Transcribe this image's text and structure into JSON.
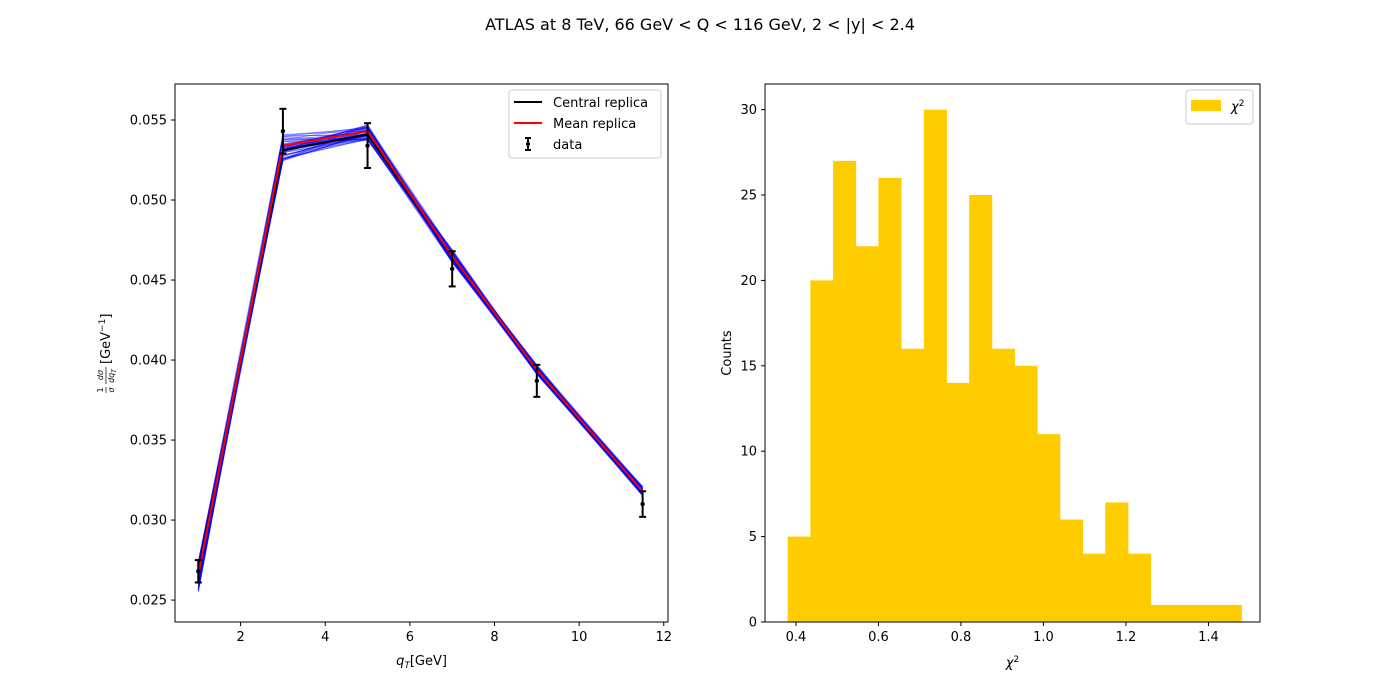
{
  "figure": {
    "suptitle": "ATLAS at 8 TeV, 66 GeV < Q < 116 GeV, 2 < |y| < 2.4"
  },
  "colors": {
    "replicas": "#0000ff",
    "central": "#000000",
    "mean": "#ff0000",
    "data": "#000000",
    "histogram": "#ffcc00"
  },
  "chart_data": [
    {
      "type": "line",
      "xlabel": "q_T[GeV]",
      "ylabel": "(1/σ) dσ/dq_T [GeV⁻¹]",
      "xlim": [
        0.45,
        12.1
      ],
      "ylim": [
        0.02363,
        0.05725
      ],
      "xticks": [
        2,
        4,
        6,
        8,
        10,
        12
      ],
      "yticks": [
        0.025,
        0.03,
        0.035,
        0.04,
        0.045,
        0.05,
        0.055
      ],
      "grid": false,
      "legend_position": "top-right",
      "x": [
        1,
        3,
        5,
        7,
        9,
        11.5
      ],
      "replica_band": {
        "name": "replicas",
        "count": 60,
        "lower": [
          0.0255,
          0.0524,
          0.0537,
          0.0461,
          0.0391,
          0.0315
        ],
        "upper": [
          0.0275,
          0.0541,
          0.0547,
          0.0469,
          0.0397,
          0.0321
        ]
      },
      "series": [
        {
          "name": "Central replica",
          "values": [
            0.0268,
            0.0531,
            0.0541,
            0.0465,
            0.0394,
            0.0318
          ]
        },
        {
          "name": "Mean replica",
          "values": [
            0.0266,
            0.0534,
            0.0543,
            0.0465,
            0.0394,
            0.0318
          ]
        }
      ],
      "data": {
        "name": "data",
        "values": [
          0.0268,
          0.0543,
          0.0534,
          0.0457,
          0.0387,
          0.031
        ],
        "errors": [
          0.0007,
          0.0014,
          0.0014,
          0.0011,
          0.001,
          0.0008
        ]
      }
    },
    {
      "type": "bar",
      "xlabel": "χ²",
      "ylabel": "Counts",
      "xlim": [
        0.325,
        1.525
      ],
      "ylim": [
        0,
        31.5
      ],
      "xticks": [
        0.4,
        0.6,
        0.8,
        1.0,
        1.2,
        1.4
      ],
      "yticks": [
        0,
        5,
        10,
        15,
        20,
        25,
        30
      ],
      "grid": false,
      "legend_position": "top-right",
      "legend": "χ²",
      "bin_edges": [
        0.38,
        0.435,
        0.49,
        0.545,
        0.6,
        0.655,
        0.71,
        0.765,
        0.82,
        0.875,
        0.93,
        0.985,
        1.04,
        1.095,
        1.15,
        1.205,
        1.26,
        1.315,
        1.37,
        1.425,
        1.48
      ],
      "values": [
        5,
        20,
        27,
        22,
        26,
        16,
        30,
        14,
        25,
        16,
        15,
        11,
        6,
        4,
        7,
        4,
        1,
        1,
        1,
        1
      ]
    }
  ]
}
